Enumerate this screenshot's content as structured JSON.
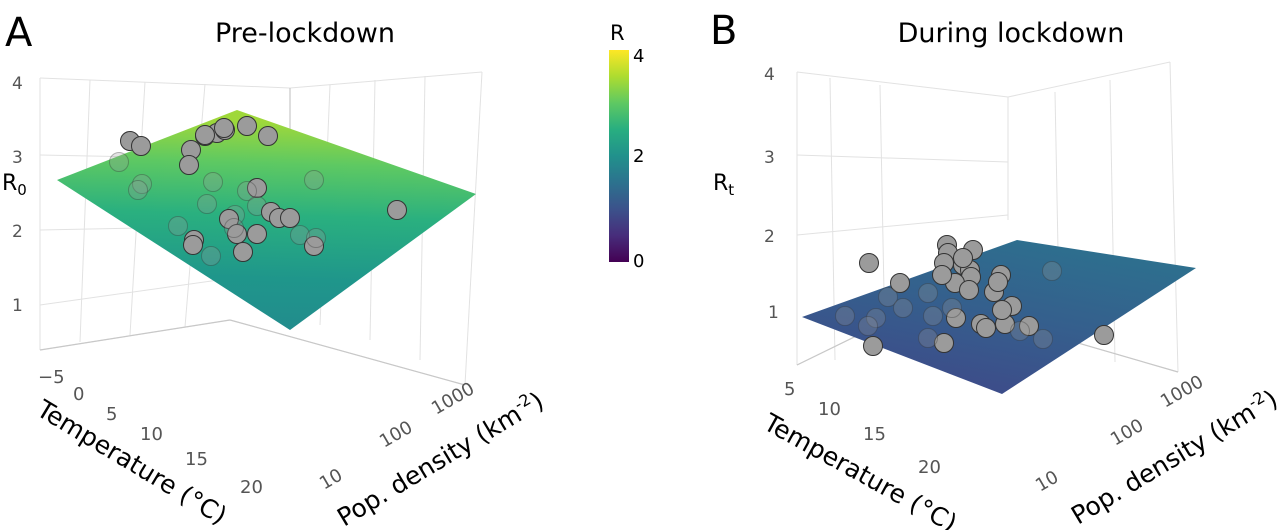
{
  "colorbar": {
    "title": "R",
    "ticks": [
      "4",
      "2",
      "0"
    ],
    "range": [
      0,
      4
    ]
  },
  "chart_data": [
    {
      "type": "scatter",
      "panel_letter": "A",
      "title": "Pre-lockdown",
      "zlabel_main": "R",
      "zlabel_sub": "0",
      "xlabel": "Temperature (°C)",
      "ylabel_main": "Pop. density (km",
      "ylabel_sup": "-2",
      "ylabel_end": ")",
      "z_ticks": [
        "4",
        "3",
        "2",
        "1"
      ],
      "x_ticks": [
        "−5",
        "0",
        "5",
        "10",
        "15",
        "20"
      ],
      "y_ticks": [
        "1000",
        "100",
        "10"
      ],
      "zlim": [
        0.5,
        4
      ],
      "surface": "fitted plane",
      "points_count": 37
    },
    {
      "type": "scatter",
      "panel_letter": "B",
      "title": "During lockdown",
      "zlabel_main": "R",
      "zlabel_sub": "t",
      "xlabel": "Temperature (°C)",
      "ylabel_main": "Pop. density (km",
      "ylabel_sup": "-2",
      "ylabel_end": ")",
      "z_ticks": [
        "4",
        "3",
        "2",
        "1"
      ],
      "x_ticks": [
        "5",
        "10",
        "15",
        "20"
      ],
      "y_ticks": [
        "1000",
        "100",
        "10"
      ],
      "zlim": [
        0.5,
        4
      ],
      "surface": "fitted plane",
      "points_count": 38
    }
  ]
}
